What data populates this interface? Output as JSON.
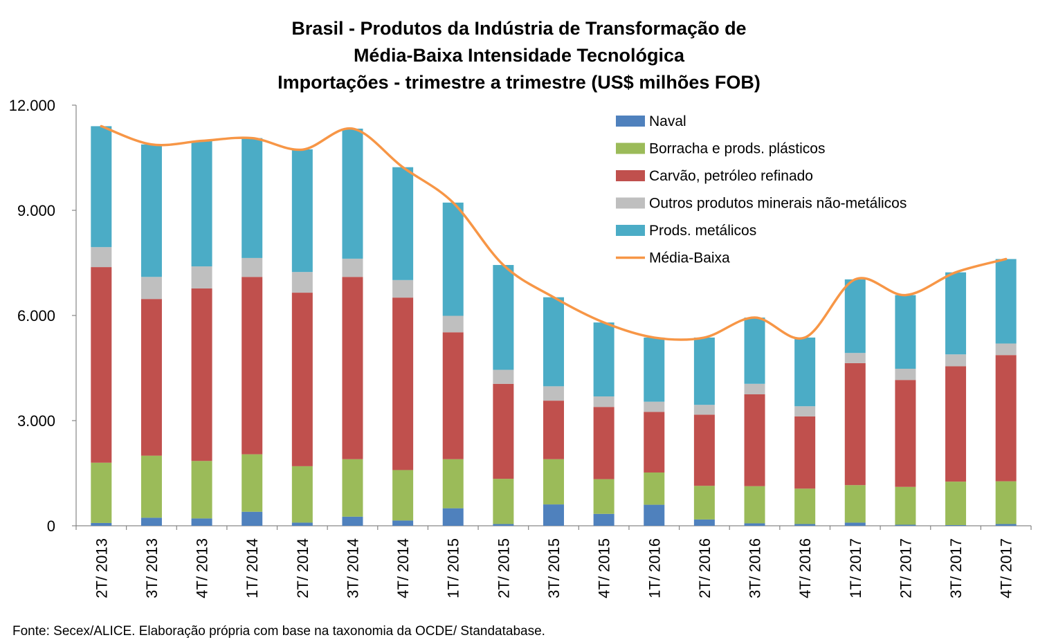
{
  "title_lines": [
    "Brasil - Produtos da Indústria de Transformação de",
    "Média-Baixa Intensidade Tecnológica",
    "Importações - trimestre a trimestre (US$ milhões FOB)"
  ],
  "source": "Fonte: Secex/ALICE. Elaboração própria com base na taxonomia da OCDE/ Standatabase.",
  "colors": {
    "naval": "#4f81bd",
    "borracha": "#9bbb59",
    "carvao": "#c0504d",
    "outros": "#bfbfbf",
    "metalicos": "#4bacc6",
    "media_baixa": "#f79646"
  },
  "chart_data": {
    "type": "bar",
    "stacked": true,
    "categories": [
      "2T/ 2013",
      "3T/ 2013",
      "4T/ 2013",
      "1T/ 2014",
      "2T/ 2014",
      "3T/ 2014",
      "4T/ 2014",
      "1T/ 2015",
      "2T/ 2015",
      "3T/ 2015",
      "4T/ 2015",
      "1T/ 2016",
      "2T/ 2016",
      "3T/ 2016",
      "4T/ 2016",
      "1T/ 2017",
      "2T/ 2017",
      "3T/ 2017",
      "4T/ 2017"
    ],
    "ylim": [
      0,
      12000
    ],
    "yticks": [
      0,
      3000,
      6000,
      9000,
      12000
    ],
    "ytick_labels": [
      "0",
      "3.000",
      "6.000",
      "9.000",
      "12.000"
    ],
    "legend_position": "top-right",
    "series": [
      {
        "name": "Naval",
        "color_key": "naval",
        "values": [
          80,
          230,
          210,
          400,
          90,
          260,
          150,
          500,
          50,
          610,
          340,
          600,
          180,
          70,
          50,
          90,
          30,
          20,
          50
        ]
      },
      {
        "name": "Borracha e prods. plásticos",
        "color_key": "borracha",
        "values": [
          1720,
          1770,
          1640,
          1640,
          1610,
          1640,
          1440,
          1400,
          1290,
          1290,
          990,
          920,
          960,
          1060,
          1010,
          1070,
          1080,
          1240,
          1220
        ]
      },
      {
        "name": "Carvão, petróleo refinado",
        "color_key": "carvao",
        "values": [
          5580,
          4470,
          4920,
          5060,
          4950,
          5200,
          4920,
          3620,
          2710,
          1670,
          2060,
          1730,
          2030,
          2620,
          2060,
          3480,
          3050,
          3290,
          3600
        ]
      },
      {
        "name": "Outros produtos minerais não-metálicos",
        "color_key": "outros",
        "values": [
          570,
          630,
          630,
          540,
          590,
          520,
          500,
          470,
          400,
          410,
          300,
          290,
          280,
          300,
          290,
          290,
          320,
          340,
          330
        ]
      },
      {
        "name": "Prods. metálicos",
        "color_key": "metalicos",
        "values": [
          3450,
          3780,
          3580,
          3420,
          3500,
          3710,
          3220,
          3230,
          2990,
          2540,
          2110,
          1830,
          1920,
          1890,
          1960,
          2100,
          2100,
          2340,
          2410
        ]
      }
    ],
    "line_series": {
      "name": "Média-Baixa",
      "color_key": "media_baixa",
      "values": [
        11400,
        10880,
        10980,
        11060,
        10730,
        11330,
        10230,
        9220,
        7440,
        6520,
        5800,
        5370,
        5370,
        5940,
        5370,
        7030,
        6580,
        7230,
        7610
      ]
    }
  }
}
